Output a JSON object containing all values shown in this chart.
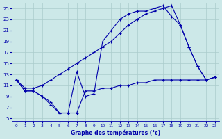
{
  "title": "Graphe des températures (°c)",
  "bg_color": "#cce8e8",
  "line_color": "#0000aa",
  "grid_color": "#aacccc",
  "xlim": [
    -0.5,
    23.5
  ],
  "ylim": [
    4.5,
    26
  ],
  "yticks": [
    5,
    7,
    9,
    11,
    13,
    15,
    17,
    19,
    21,
    23,
    25
  ],
  "xticks": [
    0,
    1,
    2,
    3,
    4,
    5,
    6,
    7,
    8,
    9,
    10,
    11,
    12,
    13,
    14,
    15,
    16,
    17,
    18,
    19,
    20,
    21,
    22,
    23
  ],
  "series": {
    "min": {
      "x": [
        0,
        1,
        2,
        3,
        4,
        5,
        6,
        7,
        8,
        9,
        10,
        11,
        12,
        13,
        14,
        15,
        16,
        17,
        18,
        19,
        20,
        21,
        22,
        23
      ],
      "y": [
        12,
        10,
        10,
        9,
        7.5,
        6,
        6,
        6,
        10,
        10,
        10.5,
        10.5,
        11,
        11,
        11.5,
        11.5,
        12,
        12,
        12,
        12,
        12,
        12,
        12,
        12.5
      ]
    },
    "actual": {
      "x": [
        0,
        1,
        2,
        3,
        4,
        5,
        6,
        7,
        8,
        9,
        10,
        11,
        12,
        13,
        14,
        15,
        16,
        17,
        18,
        19,
        20,
        21,
        22,
        23
      ],
      "y": [
        12,
        10,
        10,
        9,
        8,
        6,
        6,
        13.5,
        9,
        9.5,
        19,
        21,
        23,
        24,
        24.5,
        24.5,
        25,
        25.5,
        23.5,
        22,
        18,
        14.5,
        12,
        12.5
      ]
    },
    "max": {
      "x": [
        0,
        1,
        2,
        3,
        4,
        5,
        6,
        7,
        8,
        9,
        10,
        11,
        12,
        13,
        14,
        15,
        16,
        17,
        18,
        19,
        20,
        21,
        22,
        23
      ],
      "y": [
        12,
        10.5,
        10.5,
        11,
        12,
        13,
        14,
        15,
        16,
        17,
        18,
        19,
        20.5,
        22,
        23,
        24,
        24.5,
        25,
        25.5,
        22,
        18,
        14.5,
        12,
        12.5
      ]
    }
  }
}
